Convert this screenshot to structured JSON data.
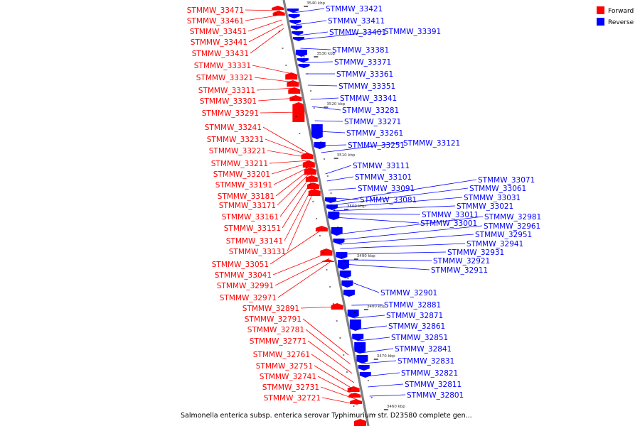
{
  "caption": "Salmonella enterica subsp. enterica serovar Typhimurium str. D23580 complete gen...",
  "legend": [
    {
      "label": "Forward",
      "color": "#ff0000"
    },
    {
      "label": "Reverse",
      "color": "#0000ff"
    }
  ],
  "colors": {
    "forward": "#ff0000",
    "reverse": "#0000ff",
    "backbone": "#808080"
  },
  "ticks": [
    "3540 kbp",
    "3530 kbp",
    "3520 kbp",
    "3510 kbp",
    "3500 kbp",
    "3490 kbp",
    "3480 kbp",
    "3470 kbp",
    "3460 kbp"
  ],
  "forward_genes": [
    "STMMW_33471",
    "STMMW_33461",
    "STMMW_33451",
    "STMMW_33441",
    "STMMW_33431",
    "STMMW_33331",
    "STMMW_33321",
    "STMMW_33311",
    "STMMW_33301",
    "STMMW_33291",
    "STMMW_33241",
    "STMMW_33231",
    "STMMW_33221",
    "STMMW_33211",
    "STMMW_33201",
    "STMMW_33191",
    "STMMW_33181",
    "STMMW_33171",
    "STMMW_33161",
    "STMMW_33151",
    "STMMW_33141",
    "STMMW_33131",
    "STMMW_33051",
    "STMMW_33041",
    "STMMW_32991",
    "STMMW_32971",
    "STMMW_32891",
    "STMMW_32791",
    "STMMW_32781",
    "STMMW_32771",
    "STMMW_32761",
    "STMMW_32751",
    "STMMW_32741",
    "STMMW_32731",
    "STMMW_32721"
  ],
  "reverse_genes": [
    "STMMW_33421",
    "STMMW_33411",
    "STMMW_33401",
    "STMMW_33391",
    "STMMW_33381",
    "STMMW_33371",
    "STMMW_33361",
    "STMMW_33351",
    "STMMW_33341",
    "STMMW_33281",
    "STMMW_33271",
    "STMMW_33261",
    "STMMW_33251",
    "STMMW_33121",
    "STMMW_33111",
    "STMMW_33101",
    "STMMW_33091",
    "STMMW_33081",
    "STMMW_33071",
    "STMMW_33061",
    "STMMW_33031",
    "STMMW_33021",
    "STMMW_33011",
    "STMMW_33001",
    "STMMW_32981",
    "STMMW_32961",
    "STMMW_32951",
    "STMMW_32941",
    "STMMW_32931",
    "STMMW_32921",
    "STMMW_32911",
    "STMMW_32901",
    "STMMW_32881",
    "STMMW_32871",
    "STMMW_32861",
    "STMMW_32851",
    "STMMW_32841",
    "STMMW_32831",
    "STMMW_32821",
    "STMMW_32811",
    "STMMW_32801"
  ]
}
